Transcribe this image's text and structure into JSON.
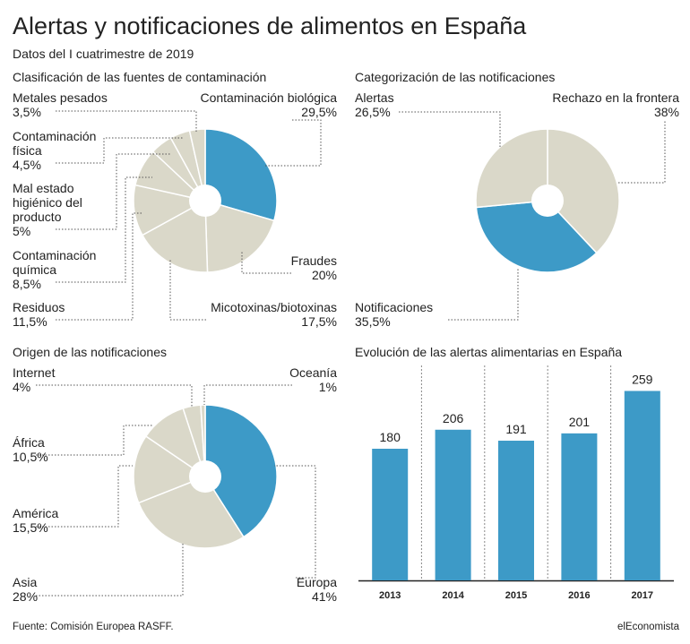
{
  "title": "Alertas y notificaciones de alimentos en España",
  "subtitle": "Datos del I cuatrimestre de 2019",
  "source": "Fuente: Comisión Europea RASFF.",
  "brand": "elEconomista",
  "colors": {
    "highlight": "#3d9ac7",
    "neutral": "#dad8c9",
    "leader": "#555555"
  },
  "chart_data": [
    {
      "type": "pie",
      "title": "Clasificación de las fuentes de contaminación",
      "slices": [
        {
          "name": "Contaminación biológica",
          "value": 29.5,
          "label": "29,5%",
          "highlight": true
        },
        {
          "name": "Fraudes",
          "value": 20,
          "label": "20%",
          "highlight": false
        },
        {
          "name": "Micotoxinas/biotoxinas",
          "value": 17.5,
          "label": "17,5%",
          "highlight": false
        },
        {
          "name": "Residuos",
          "value": 11.5,
          "label": "11,5%",
          "highlight": false
        },
        {
          "name": "Contaminación química",
          "value": 8.5,
          "label": "8,5%",
          "highlight": false
        },
        {
          "name": "Mal estado higiénico del producto",
          "value": 5,
          "label": "5%",
          "highlight": false
        },
        {
          "name": "Contaminación física",
          "value": 4.5,
          "label": "4,5%",
          "highlight": false
        },
        {
          "name": "Metales pesados",
          "value": 3.5,
          "label": "3,5%",
          "highlight": false
        }
      ]
    },
    {
      "type": "pie",
      "title": "Categorización de las notificaciones",
      "slices": [
        {
          "name": "Rechazo en la frontera",
          "value": 38,
          "label": "38%",
          "highlight": false
        },
        {
          "name": "Notificaciones",
          "value": 35.5,
          "label": "35,5%",
          "highlight": true
        },
        {
          "name": "Alertas",
          "value": 26.5,
          "label": "26,5%",
          "highlight": false
        }
      ]
    },
    {
      "type": "pie",
      "title": "Origen de las notificaciones",
      "slices": [
        {
          "name": "Europa",
          "value": 41,
          "label": "41%",
          "highlight": true
        },
        {
          "name": "Asia",
          "value": 28,
          "label": "28%",
          "highlight": false
        },
        {
          "name": "América",
          "value": 15.5,
          "label": "15,5%",
          "highlight": false
        },
        {
          "name": "África",
          "value": 10.5,
          "label": "10,5%",
          "highlight": false
        },
        {
          "name": "Internet",
          "value": 4,
          "label": "4%",
          "highlight": false
        },
        {
          "name": "Oceanía",
          "value": 1,
          "label": "1%",
          "highlight": false
        }
      ]
    },
    {
      "type": "bar",
      "title": "Evolución de las alertas alimentarias en España",
      "categories": [
        "2013",
        "2014",
        "2015",
        "2016",
        "2017"
      ],
      "values": [
        180,
        206,
        191,
        201,
        259
      ],
      "ylim": [
        0,
        300
      ]
    }
  ]
}
